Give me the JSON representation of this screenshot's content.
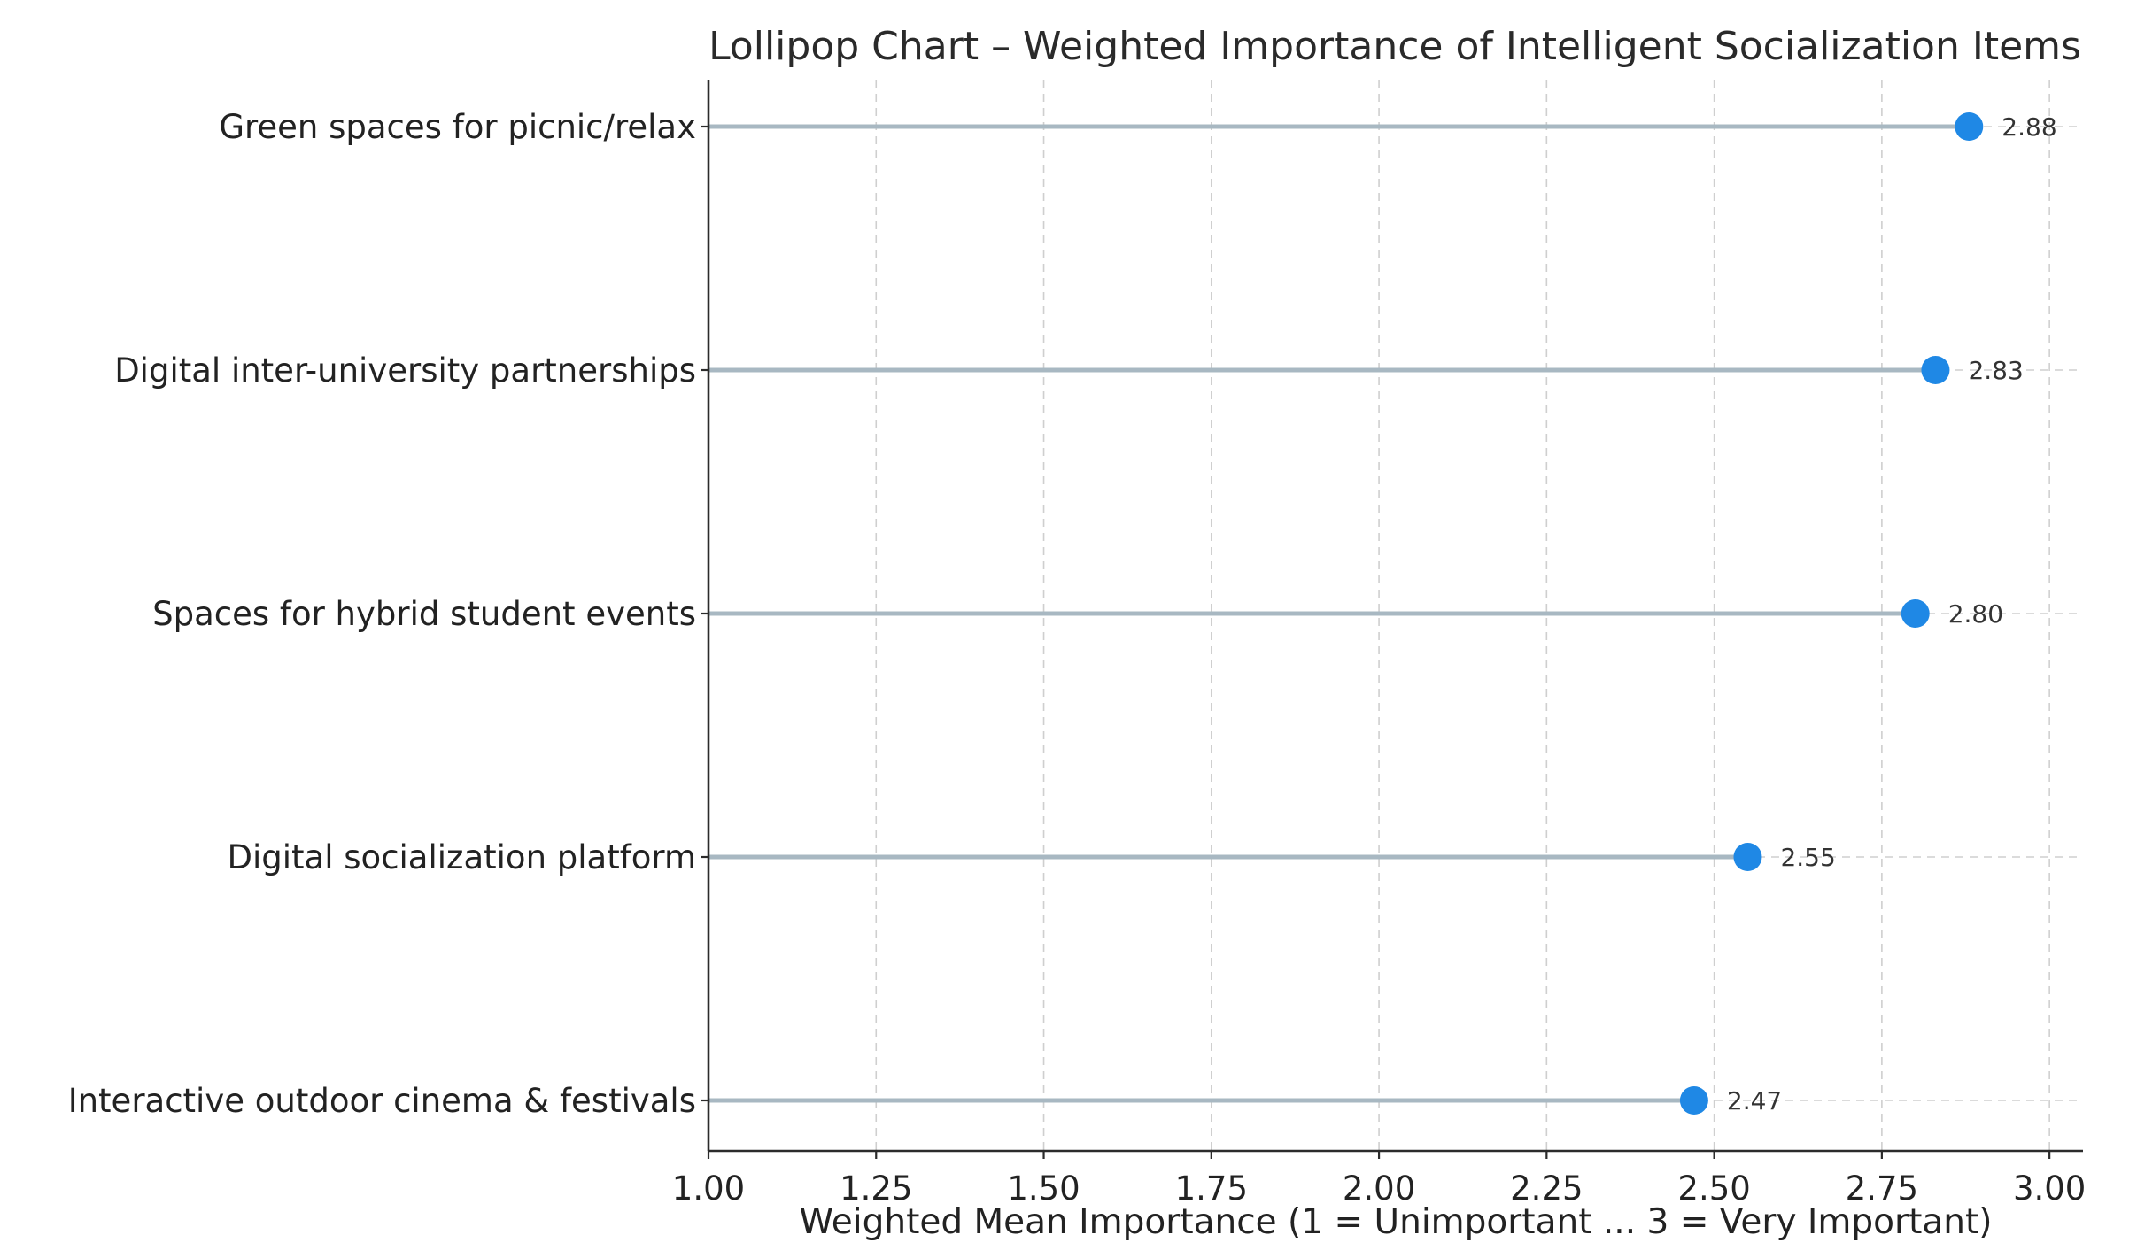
{
  "chart_data": {
    "type": "lollipop",
    "title": "Lollipop Chart – Weighted Importance of Intelligent Socialization Items",
    "xlabel": "Weighted Mean Importance (1 = Unimportant ... 3 = Very Important)",
    "ylabel": "",
    "xlim": [
      1.0,
      3.05
    ],
    "x_ticks": [
      1.0,
      1.25,
      1.5,
      1.75,
      2.0,
      2.25,
      2.5,
      2.75,
      3.0
    ],
    "x_tick_labels": [
      "1.00",
      "1.25",
      "1.50",
      "1.75",
      "2.00",
      "2.25",
      "2.50",
      "2.75",
      "3.00"
    ],
    "categories": [
      "Green spaces for picnic/relax",
      "Digital inter-university partnerships",
      "Spaces for hybrid student events",
      "Digital socialization platform",
      "Interactive outdoor cinema & festivals"
    ],
    "values": [
      2.88,
      2.83,
      2.8,
      2.55,
      2.47
    ],
    "value_labels": [
      "2.88",
      "2.83",
      "2.80",
      "2.55",
      "2.47"
    ],
    "grid": "vertical dashed, plus dashed row guides to the right of each point",
    "legend": "none",
    "colors": {
      "marker": "#1f88e5",
      "stem": "#a8b8c2",
      "grid": "#cfcfcf",
      "axis": "#2b2b2b"
    }
  }
}
